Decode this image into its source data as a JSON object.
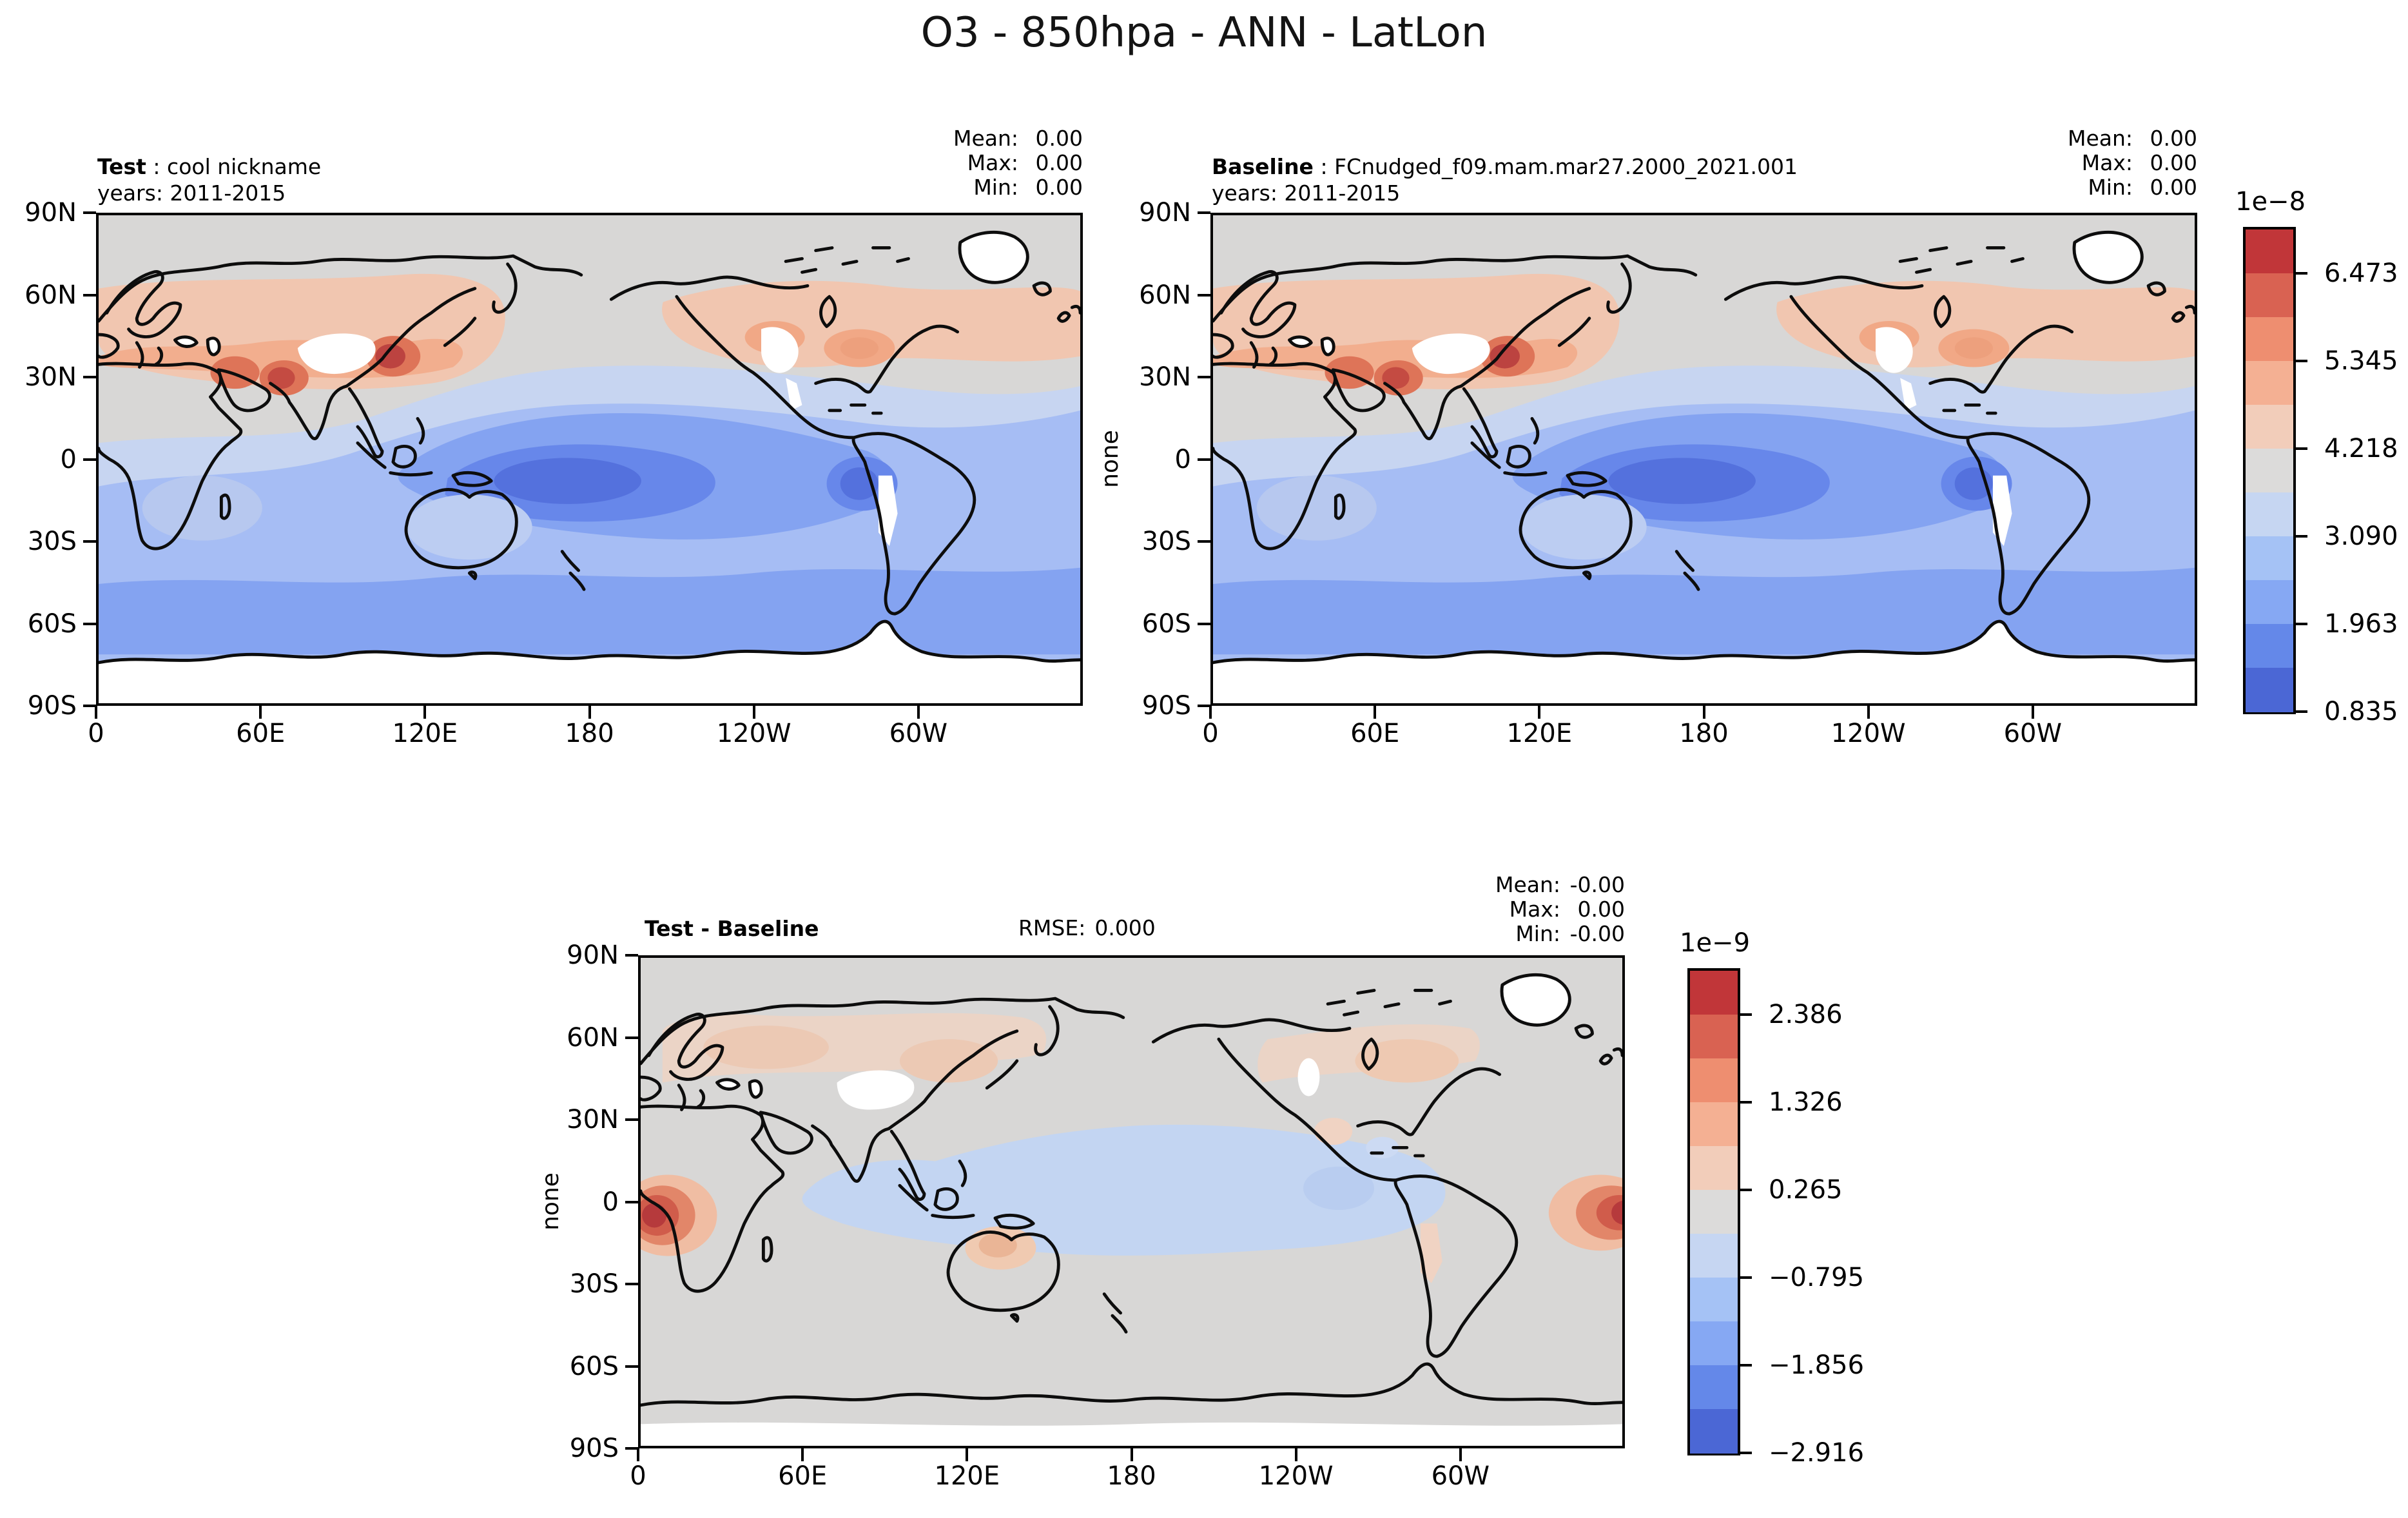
{
  "title": "O3 - 850hpa - ANN - LatLon",
  "panels": {
    "test": {
      "label": "Test",
      "separator": " : ",
      "name": "cool nickname",
      "years": "years: 2011-2015",
      "stats": {
        "mean_label": "Mean:",
        "mean": "0.00",
        "max_label": "Max:",
        "max": "0.00",
        "min_label": "Min:",
        "min": "0.00"
      }
    },
    "baseline": {
      "label": "Baseline",
      "separator": " : ",
      "name": "FCnudged_f09.mam.mar27.2000_2021.001",
      "years": "years: 2011-2015",
      "stats": {
        "mean_label": "Mean:",
        "mean": "0.00",
        "max_label": "Max:",
        "max": "0.00",
        "min_label": "Min:",
        "min": "0.00"
      }
    },
    "diff": {
      "label": "Test - Baseline",
      "rmse_label": "RMSE:",
      "rmse": "0.000",
      "stats": {
        "mean_label": "Mean:",
        "mean": "-0.00",
        "max_label": "Max:",
        "max": "0.00",
        "min_label": "Min:",
        "min": "-0.00"
      }
    }
  },
  "axes": {
    "x_ticks": [
      "0",
      "60E",
      "120E",
      "180",
      "120W",
      "60W"
    ],
    "y_ticks": [
      "90N",
      "60N",
      "30N",
      "0",
      "30S",
      "60S",
      "90S"
    ],
    "y_label": "none"
  },
  "colorbars": {
    "top": {
      "exponent": "1e−8",
      "tick_labels": [
        "6.473",
        "5.345",
        "4.218",
        "3.090",
        "1.963",
        "0.835"
      ]
    },
    "diff": {
      "exponent": "1e−9",
      "tick_labels": [
        "2.386",
        "1.326",
        "0.265",
        "−0.795",
        "−1.856",
        "−2.916"
      ]
    }
  },
  "colormap": [
    "#c13639",
    "#d96252",
    "#ee8e70",
    "#f4b093",
    "#f2cdba",
    "#dcdbda",
    "#c6d6f2",
    "#a5c2f5",
    "#86a8f3",
    "#6488e9",
    "#4b67d5"
  ],
  "chart_data": [
    {
      "type": "heatmap",
      "subtype": "filled-contour-latlon-map",
      "panel": "test",
      "title": "Test : cool nickname",
      "subtitle": "years: 2011-2015",
      "variable": "O3",
      "pressure_level": "850hpa",
      "season": "ANN",
      "units": "none",
      "scale_factor": "1e-8",
      "stats": {
        "mean": 0.0,
        "max": 0.0,
        "min": 0.0
      },
      "x_tick_labels": [
        "0",
        "60E",
        "120E",
        "180",
        "120W",
        "60W"
      ],
      "y_tick_labels": [
        "90N",
        "60N",
        "30N",
        "0",
        "30S",
        "60S",
        "90S"
      ],
      "x_range_deg": [
        0,
        360
      ],
      "y_range_deg": [
        -90,
        90
      ],
      "contour_levels": [
        0.835,
        1.399,
        1.963,
        2.526,
        3.09,
        3.654,
        4.218,
        4.781,
        5.345,
        5.909,
        6.473,
        7.037
      ],
      "colorbar_ticks": [
        6.473,
        5.345,
        4.218,
        3.09,
        1.963,
        0.835
      ],
      "legend_position": "right",
      "grid": false,
      "pattern": "Red/orange maxima over northern mid-latitude continents (Middle East, South and East Asia, western and eastern North America, N Atlantic); neutral gray over Arctic, Sahara and N Pacific; blue minimum band across tropics, darkest over western equatorial Pacific and off Peru; medium blue southern oceans; white over Tibet, Greenland, Rockies, Andes and Antarctica."
    },
    {
      "type": "heatmap",
      "subtype": "filled-contour-latlon-map",
      "panel": "baseline",
      "title": "Baseline : FCnudged_f09.mam.mar27.2000_2021.001",
      "subtitle": "years: 2011-2015",
      "variable": "O3",
      "pressure_level": "850hpa",
      "season": "ANN",
      "units": "none",
      "scale_factor": "1e-8",
      "stats": {
        "mean": 0.0,
        "max": 0.0,
        "min": 0.0
      },
      "x_tick_labels": [
        "0",
        "60E",
        "120E",
        "180",
        "120W",
        "60W"
      ],
      "y_tick_labels": [
        "90N",
        "60N",
        "30N",
        "0",
        "30S",
        "60S",
        "90S"
      ],
      "x_range_deg": [
        0,
        360
      ],
      "y_range_deg": [
        -90,
        90
      ],
      "contour_levels": [
        0.835,
        1.399,
        1.963,
        2.526,
        3.09,
        3.654,
        4.218,
        4.781,
        5.345,
        5.909,
        6.473,
        7.037
      ],
      "colorbar_ticks": [
        6.473,
        5.345,
        4.218,
        3.09,
        1.963,
        0.835
      ],
      "legend_position": "right",
      "grid": false,
      "pattern": "Visually identical to Test panel: warm maxima over northern mid-latitude continents, cool blue band across tropics and southern oceans, white over high terrain, Greenland and Antarctica."
    },
    {
      "type": "heatmap",
      "subtype": "filled-contour-latlon-map",
      "panel": "diff",
      "title": "Test - Baseline",
      "rmse": 0.0,
      "units": "none",
      "scale_factor": "1e-9",
      "stats": {
        "mean": -0.0,
        "max": 0.0,
        "min": -0.0
      },
      "x_tick_labels": [
        "0",
        "60E",
        "120E",
        "180",
        "120W",
        "60W"
      ],
      "y_tick_labels": [
        "90N",
        "60N",
        "30N",
        "0",
        "30S",
        "60S",
        "90S"
      ],
      "x_range_deg": [
        0,
        360
      ],
      "y_range_deg": [
        -90,
        90
      ],
      "contour_levels": [
        -2.916,
        -2.386,
        -1.856,
        -1.326,
        -0.795,
        -0.265,
        0.265,
        0.795,
        1.326,
        1.856,
        2.386,
        2.916
      ],
      "colorbar_ticks": [
        2.386,
        1.326,
        0.265,
        -0.795,
        -1.856,
        -2.916
      ],
      "legend_position": "right",
      "grid": false,
      "pattern": "Mostly neutral gray; pale blue band across tropical Indian and Pacific oceans; strong red anomaly over western equatorial Africa wrapping around the map edge into the equatorial Atlantic; faint warm patches over northern Eurasia, Canada, central Australia and the Andes; white over Tibet and Greenland."
    }
  ]
}
